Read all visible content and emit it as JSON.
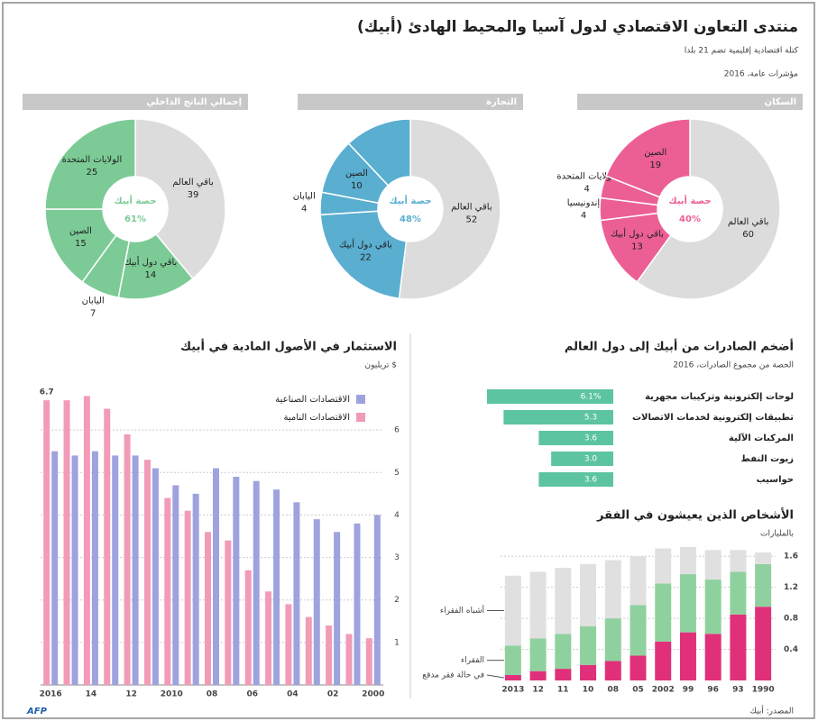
{
  "header": {
    "title": "منتدى التعاون الاقتصادي لدول آسيا والمحيط الهادئ (أبيك)",
    "subtitle": "كتلة اقتصادية إقليمية تضم 21 بلدا",
    "note": "مؤشرات عامة، 2016"
  },
  "chart_data": [
    {
      "type": "donut",
      "title": "السكان",
      "center_label": "حصة أبيك",
      "center_value": "40%",
      "categories": [
        "باقي العالم",
        "باقي دول أبيك",
        "إندونيسيا",
        "الولايات المتحدة",
        "الصين"
      ],
      "values": [
        60,
        13,
        4,
        4,
        19
      ],
      "colors": [
        "#dcdcdc",
        "#ec5f95",
        "#ec5f95",
        "#ec5f95",
        "#ec5f95"
      ]
    },
    {
      "type": "donut",
      "title": "التجارة",
      "center_label": "حصة أبيك",
      "center_value": "48%",
      "categories": [
        "باقي العالم",
        "باقي دول أبيك",
        "اليابان",
        "الصين",
        null
      ],
      "values": [
        52,
        22,
        4,
        10,
        12
      ],
      "colors": [
        "#dcdcdc",
        "#5aaed0",
        "#5aaed0",
        "#5aaed0",
        "#5aaed0"
      ]
    },
    {
      "type": "donut",
      "title": "إجمالي الناتج الداخلي",
      "center_label": "حصة أبيك",
      "center_value": "61%",
      "categories": [
        "باقي العالم",
        "باقي دول أبيك",
        "اليابان",
        "الصين",
        "الولايات المتحدة"
      ],
      "values": [
        39,
        14,
        7,
        15,
        25
      ],
      "colors": [
        "#dcdcdc",
        "#7ccb96",
        "#7ccb96",
        "#7ccb96",
        "#7ccb96"
      ]
    },
    {
      "type": "bar",
      "title": "الاستثمار في الأصول المادية في أبيك",
      "subtitle": "تريليون $",
      "categories": [
        "2016",
        null,
        "14",
        null,
        "12",
        null,
        "2010",
        null,
        "08",
        null,
        "06",
        null,
        "04",
        null,
        "02",
        null,
        "2000"
      ],
      "series": [
        {
          "name": "الاقتصادات النامية",
          "color": "#f29bb8",
          "values": [
            6.7,
            6.7,
            6.8,
            6.5,
            5.9,
            5.3,
            4.4,
            4.1,
            3.6,
            3.4,
            2.7,
            2.2,
            1.9,
            1.6,
            1.4,
            1.2,
            1.1
          ],
          "value_labels": [
            "6.7",
            null,
            null,
            null,
            null,
            null,
            null,
            null,
            null,
            null,
            null,
            null,
            null,
            null,
            null,
            null,
            null
          ]
        },
        {
          "name": "الاقتصادات الصناعية",
          "color": "#9ea3de",
          "values": [
            5.5,
            5.4,
            5.5,
            5.4,
            5.4,
            5.1,
            4.7,
            4.5,
            5.1,
            4.9,
            4.8,
            4.6,
            4.3,
            3.9,
            3.6,
            3.8,
            4.0
          ]
        }
      ],
      "ylim": [
        0,
        7
      ],
      "yticks": [
        1,
        2,
        3,
        4,
        5,
        6
      ],
      "grid": true
    },
    {
      "type": "barh",
      "title": "أضخم الصادرات من أبيك إلى دول العالم",
      "subtitle": "الحصة من مجموع الصادرات، 2016",
      "categories": [
        "لوحات إلكترونية وتركيبات مجهرية",
        "تطبيقات إلكترونية لخدمات الاتصالات",
        "المركبات الآلية",
        "زيوت النفط",
        "حواسيب"
      ],
      "values": [
        6.1,
        5.3,
        3.6,
        3.0,
        3.6
      ],
      "value_labels": [
        "6.1%",
        "5.3",
        "3.6",
        "3.0",
        "3.6"
      ],
      "color": "#5cc4a0"
    },
    {
      "type": "stacked",
      "title": "الأشخاص الذين يعيشون في الفقر",
      "subtitle": "بالمليارات",
      "categories": [
        "2013",
        "12",
        "11",
        "10",
        "08",
        "05",
        "2002",
        "99",
        "96",
        "93",
        "1990"
      ],
      "series": [
        {
          "name": "في حالة فقر مدقع",
          "color": "#e0307a",
          "values": [
            0.07,
            0.12,
            0.15,
            0.2,
            0.25,
            0.32,
            0.5,
            0.62,
            0.6,
            0.85,
            0.95
          ]
        },
        {
          "name": "الفقراء",
          "color": "#8fd19e",
          "values": [
            0.38,
            0.42,
            0.45,
            0.5,
            0.55,
            0.65,
            0.75,
            0.75,
            0.7,
            0.55,
            0.55
          ]
        },
        {
          "name": "أشباه الفقراء",
          "color": "#e0e0e0",
          "values": [
            0.9,
            0.86,
            0.85,
            0.8,
            0.75,
            0.63,
            0.45,
            0.35,
            0.38,
            0.28,
            0.15
          ]
        }
      ],
      "ylim": [
        0,
        1.8
      ],
      "yticks": [
        0.4,
        0.8,
        1.2,
        1.6
      ],
      "grid": true
    }
  ],
  "footer": {
    "source": "المصدر: أبيك",
    "credit": "AFP"
  }
}
